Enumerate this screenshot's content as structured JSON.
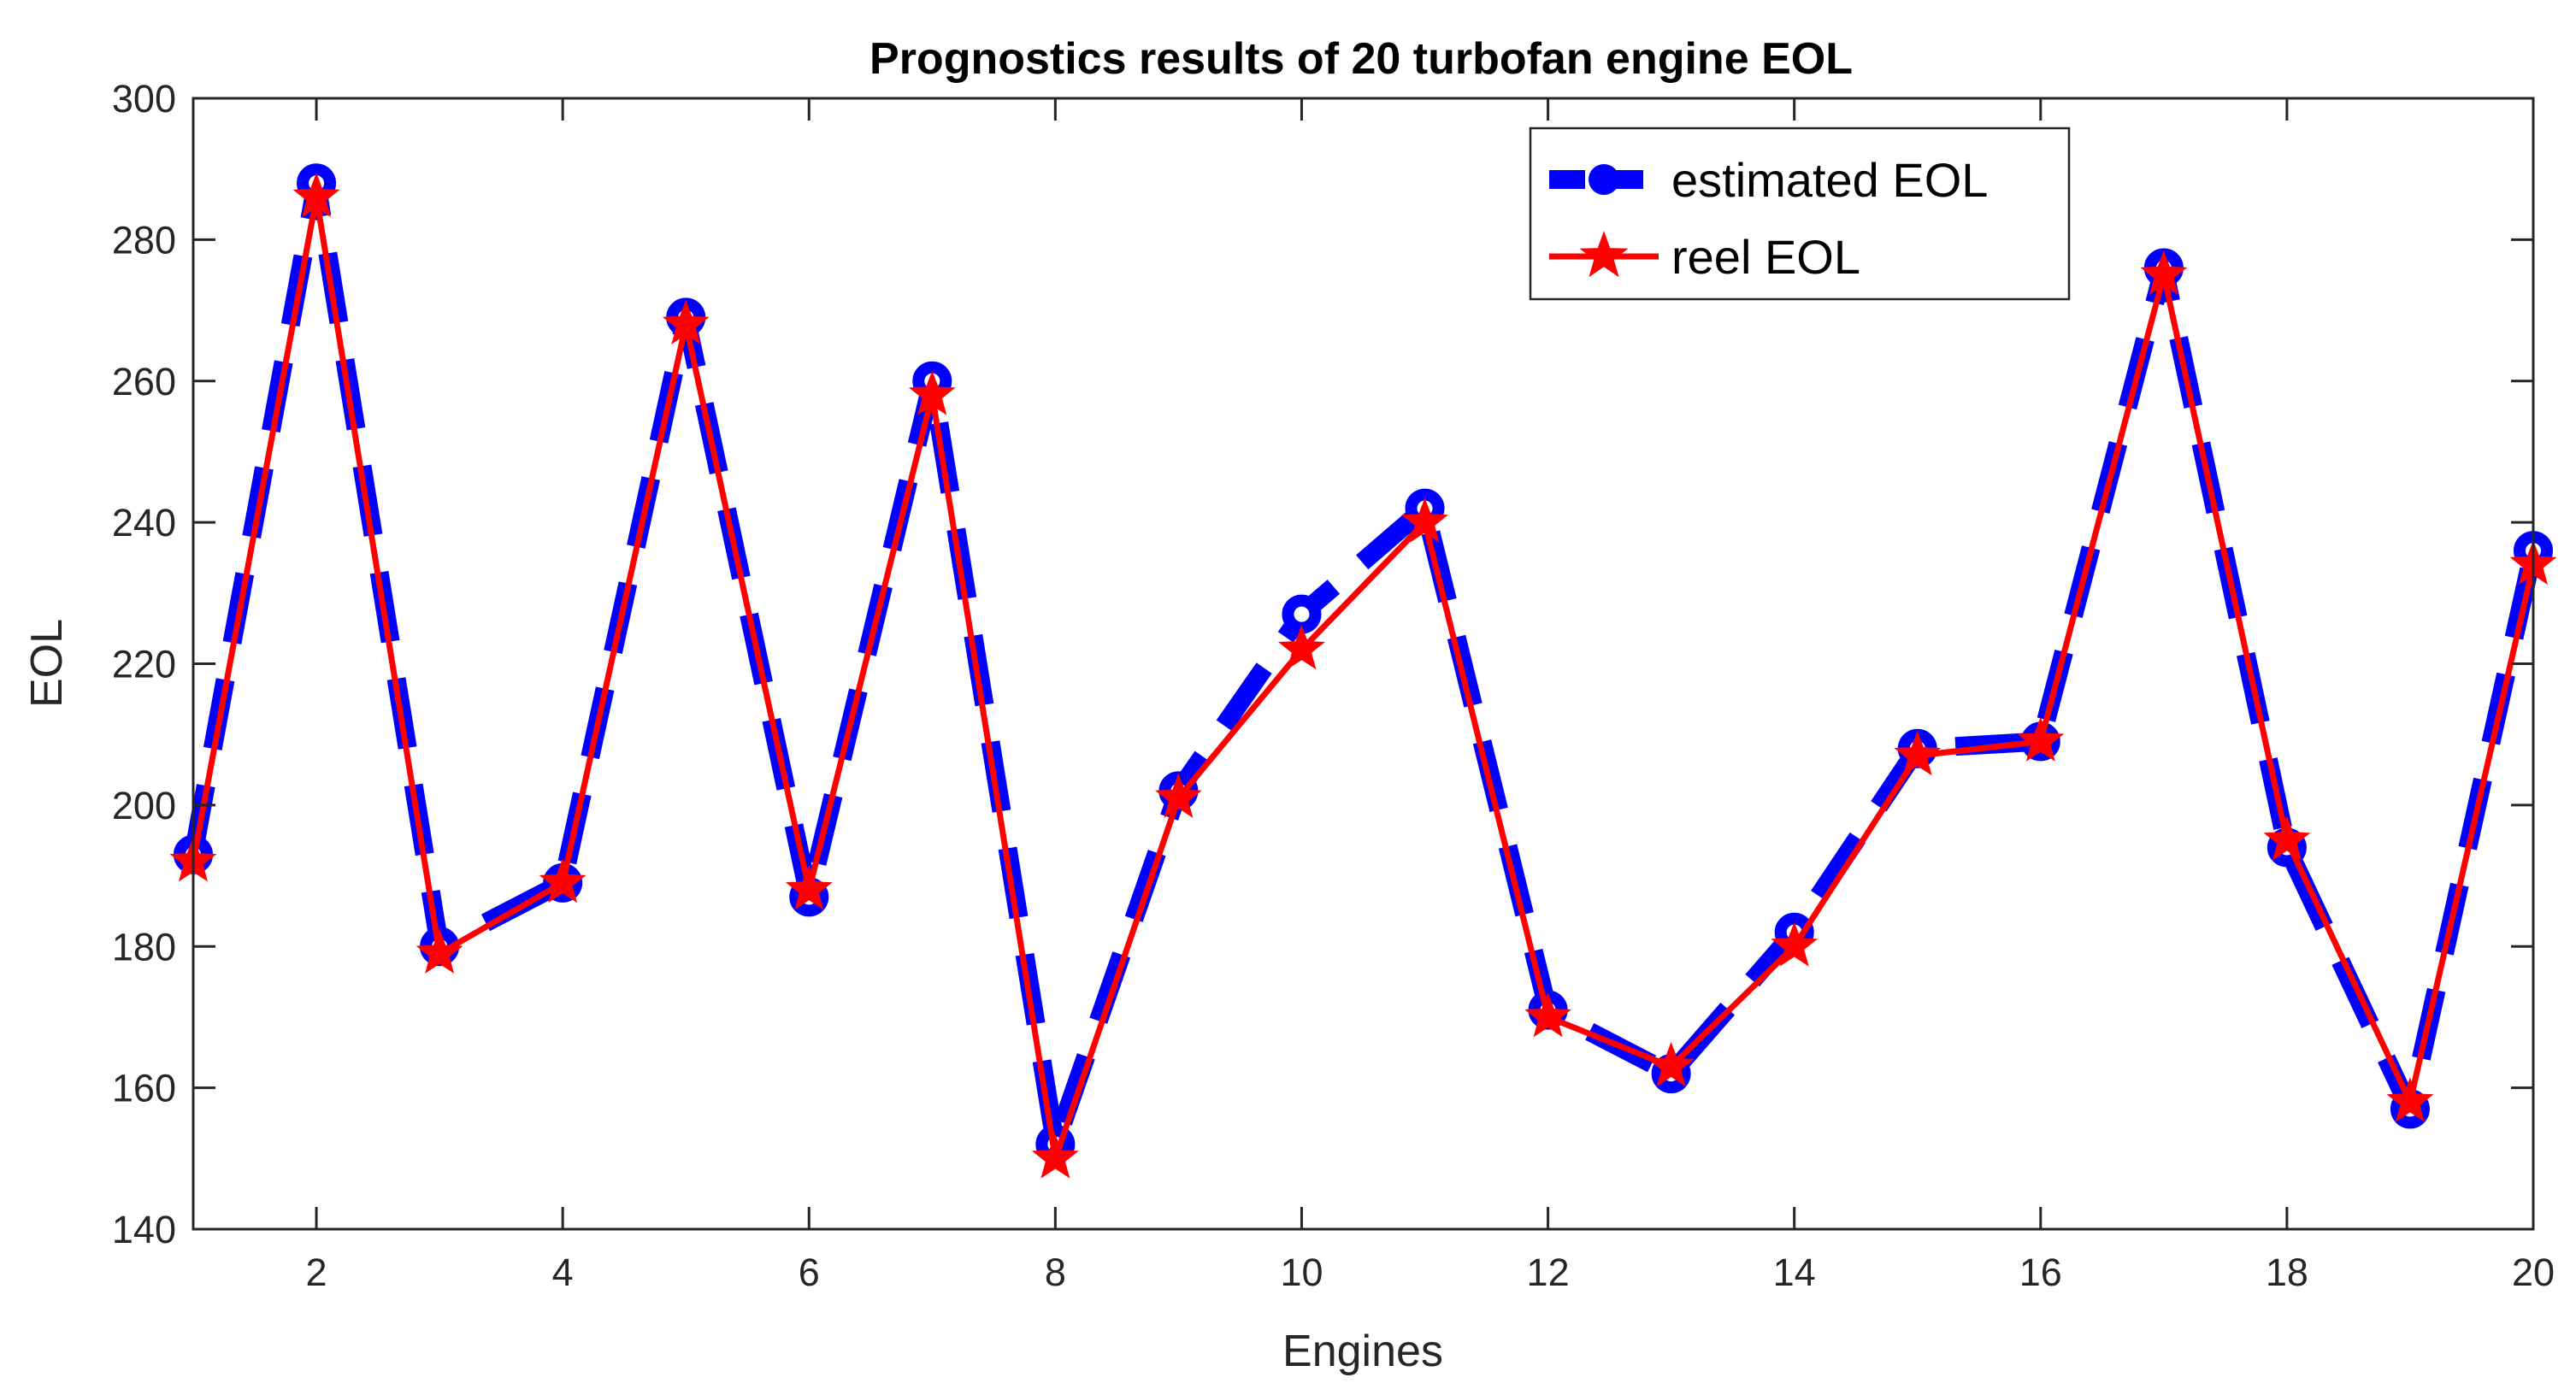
{
  "chart_data": {
    "type": "line",
    "title": "Prognostics results of 20 turbofan engine EOL",
    "xlabel": "Engines",
    "ylabel": "EOL",
    "xlim": [
      1,
      20
    ],
    "ylim": [
      140,
      300
    ],
    "xticks": [
      2,
      4,
      6,
      8,
      10,
      12,
      14,
      16,
      18,
      20
    ],
    "yticks": [
      140,
      160,
      180,
      200,
      220,
      240,
      260,
      280,
      300
    ],
    "x": [
      1,
      2,
      3,
      4,
      5,
      6,
      7,
      8,
      9,
      10,
      11,
      12,
      13,
      14,
      15,
      16,
      17,
      18,
      19,
      20
    ],
    "grid": false,
    "legend_position": "top-right",
    "series": [
      {
        "name": "estimated EOL",
        "color": "#0000ff",
        "line_style": "dashed",
        "marker": "circle",
        "values": [
          193,
          288,
          180,
          189,
          269,
          187,
          260,
          152,
          202,
          227,
          242,
          171,
          162,
          182,
          208,
          209,
          276,
          194,
          157,
          236
        ]
      },
      {
        "name": "reel EOL",
        "color": "#ff0000",
        "line_style": "solid",
        "marker": "star",
        "values": [
          192,
          286,
          179,
          189,
          268,
          188,
          258,
          150,
          201,
          222,
          240,
          170,
          163,
          180,
          207,
          209,
          275,
          195,
          158,
          234
        ]
      }
    ]
  }
}
